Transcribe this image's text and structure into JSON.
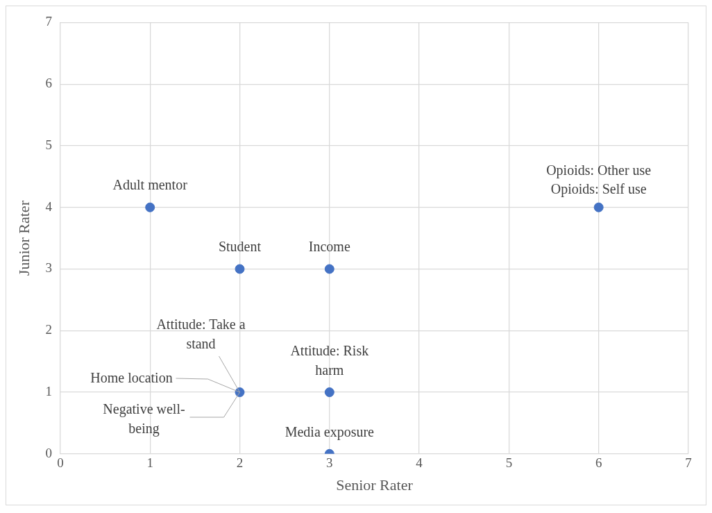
{
  "chart_data": {
    "type": "scatter",
    "xlabel": "Senior Rater",
    "ylabel": "Junior Rater",
    "x": [
      1,
      2,
      3,
      6,
      2,
      3,
      3
    ],
    "values": [
      4,
      3,
      3,
      4,
      1,
      1,
      0
    ],
    "color": "#4472c4",
    "xlim": [
      0,
      7
    ],
    "ylim": [
      0,
      7
    ],
    "xticks": [
      0,
      1,
      2,
      3,
      4,
      5,
      6,
      7
    ],
    "yticks": [
      0,
      1,
      2,
      3,
      4,
      5,
      6,
      7
    ],
    "grid": true,
    "legend": false,
    "marker": "circle",
    "annotations": [
      {
        "text": "Adult mentor",
        "x": 1,
        "y": 4
      },
      {
        "text": "Student",
        "x": 2,
        "y": 3
      },
      {
        "text": "Income",
        "x": 3,
        "y": 3
      },
      {
        "text": "Opioids: Other use",
        "x": 6,
        "y": 4
      },
      {
        "text": "Opioids: Self use",
        "x": 6,
        "y": 4
      },
      {
        "text": "Attitude: Take a stand",
        "x": 2,
        "y": 1
      },
      {
        "text": "Home location",
        "x": 2,
        "y": 1
      },
      {
        "text": "Negative well-being",
        "x": 2,
        "y": 1
      },
      {
        "text": "Attitude: Risk harm",
        "x": 3,
        "y": 1
      },
      {
        "text": "Media exposure",
        "x": 3,
        "y": 0
      }
    ]
  }
}
